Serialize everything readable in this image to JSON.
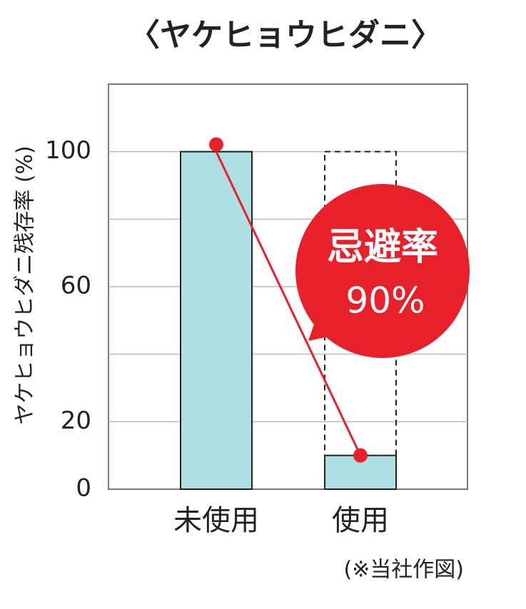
{
  "chart_data": {
    "type": "bar",
    "title": "〈ヤケヒョウヒダニ〉",
    "y_label": "ヤケヒョウヒダニ残存率 (%)",
    "categories": [
      "未使用",
      "使用"
    ],
    "values": [
      100,
      10
    ],
    "color": "#aedfe5",
    "line_color": "#e8202a",
    "dashed_reference": 100,
    "ylim": [
      0,
      120
    ],
    "yticks": [
      0,
      20,
      60,
      100
    ],
    "ygrid": [
      20,
      40,
      60,
      80,
      100
    ],
    "annotation": [
      "忌避率",
      "90%"
    ],
    "note": "(※当社作図)"
  }
}
